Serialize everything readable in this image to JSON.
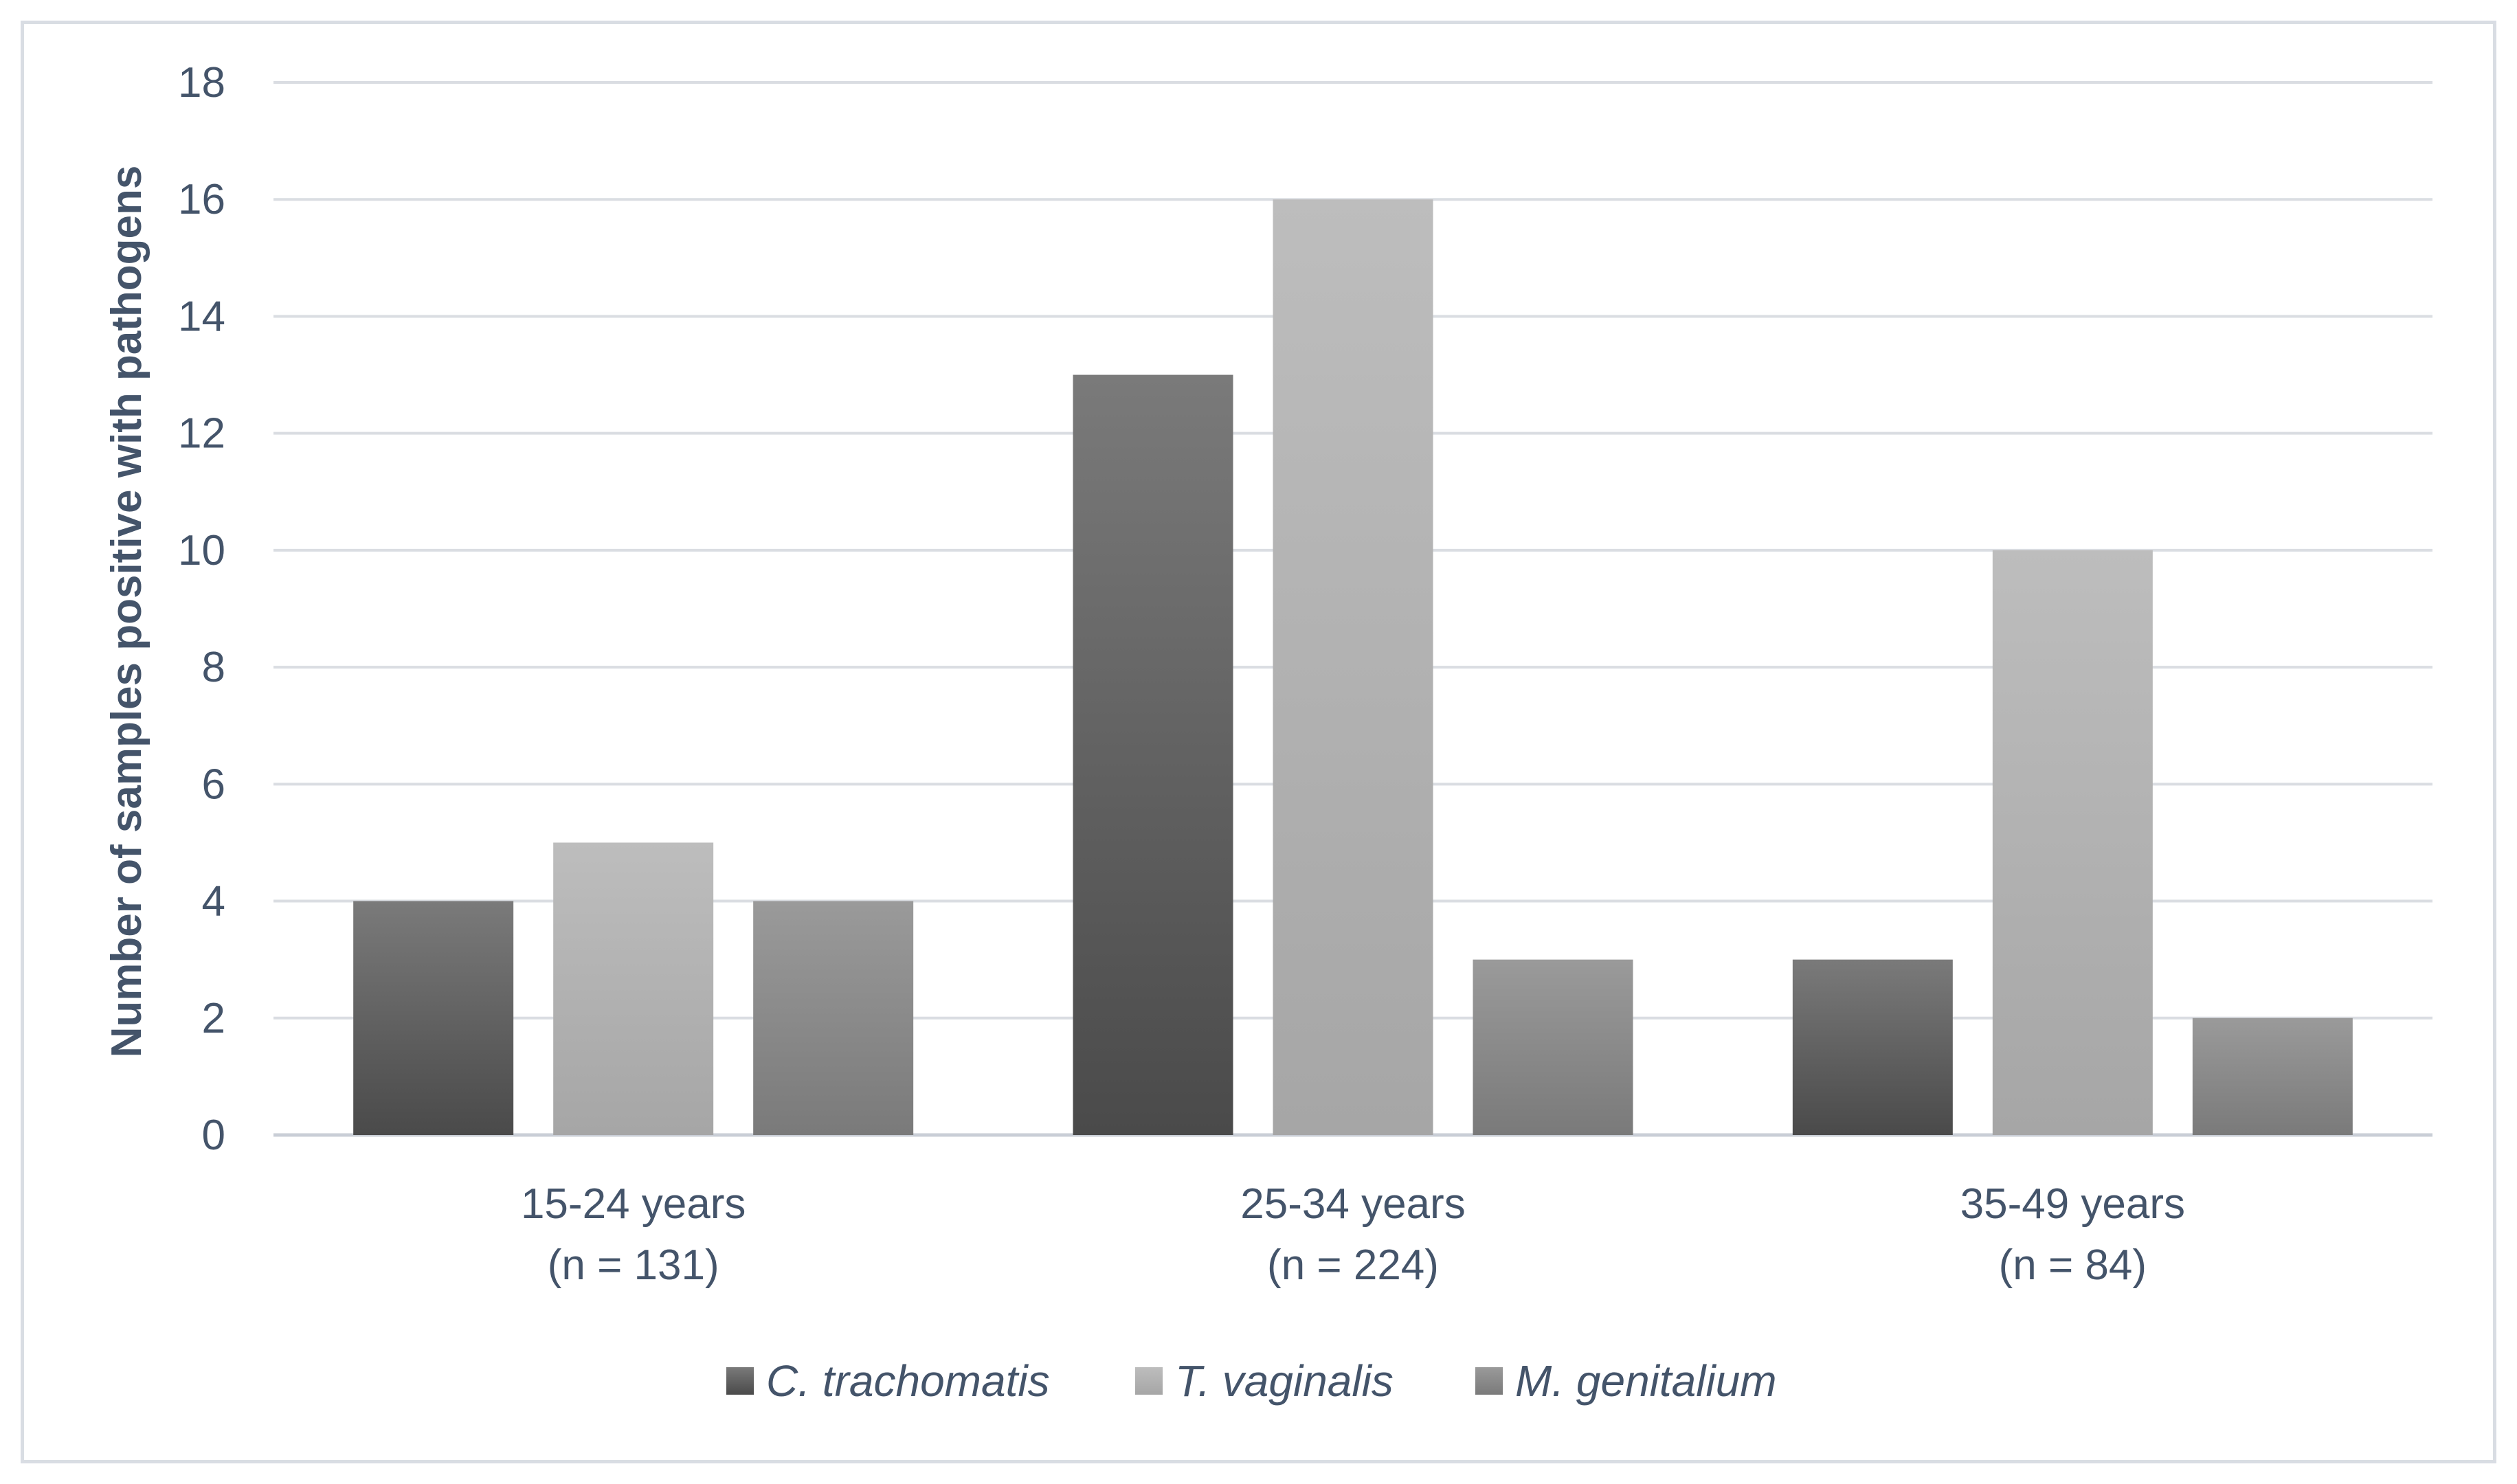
{
  "chart_data": {
    "type": "bar",
    "title": "",
    "xlabel": "",
    "ylabel": "Number of samples positive with pathogens",
    "ylim": [
      0,
      18
    ],
    "yticks": [
      0,
      2,
      4,
      6,
      8,
      10,
      12,
      14,
      16,
      18
    ],
    "grid": true,
    "legend_position": "bottom",
    "categories": [
      {
        "line1": "15-24 years",
        "line2": "(n = 131)"
      },
      {
        "line1": "25-34 years",
        "line2": "(n = 224)"
      },
      {
        "line1": "35-49 years",
        "line2": "(n = 84)"
      }
    ],
    "series": [
      {
        "name": "C. trachomatis",
        "values": [
          4,
          13,
          3
        ],
        "color_top": "#7a7a7a",
        "color_bottom": "#4a4a4a"
      },
      {
        "name": "T. vaginalis",
        "values": [
          5,
          16,
          10
        ],
        "color_top": "#bdbdbd",
        "color_bottom": "#a6a6a6"
      },
      {
        "name": "M. genitalium",
        "values": [
          4,
          3,
          2
        ],
        "color_top": "#9a9a9a",
        "color_bottom": "#7a7a7a"
      }
    ]
  }
}
